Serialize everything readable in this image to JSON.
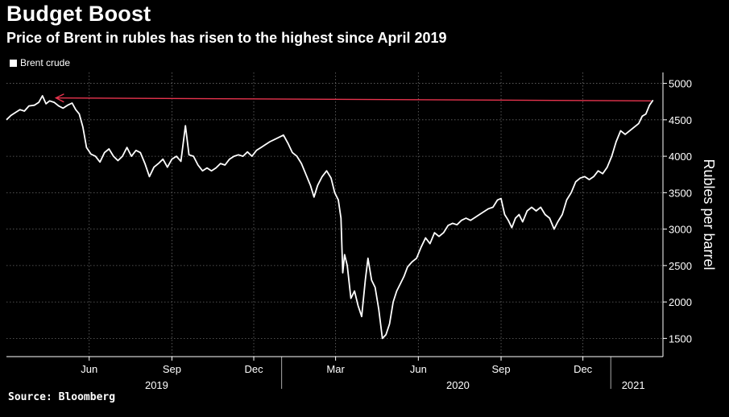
{
  "header": {
    "title": "Budget Boost",
    "subtitle": "Price of Brent in rubles has risen to the highest since April 2019"
  },
  "legend": {
    "label": "Brent crude",
    "color": "#ffffff"
  },
  "footer": {
    "source": "Source: Bloomberg"
  },
  "chart_data": {
    "type": "line",
    "title": "Budget Boost",
    "subtitle": "Price of Brent in rubles has risen to the highest since April 2019",
    "ylabel": "Rubles per barrel",
    "ylim": [
      1250,
      5150
    ],
    "yticks": [
      1500,
      2000,
      2500,
      3000,
      3500,
      4000,
      4500,
      5000
    ],
    "xlim": [
      "2019-03-01",
      "2021-02-28"
    ],
    "xticks": [
      {
        "date": "2019-06-01",
        "label": "Jun"
      },
      {
        "date": "2019-09-01",
        "label": "Sep"
      },
      {
        "date": "2019-12-01",
        "label": "Dec"
      },
      {
        "date": "2020-03-01",
        "label": "Mar"
      },
      {
        "date": "2020-06-01",
        "label": "Jun"
      },
      {
        "date": "2020-09-01",
        "label": "Sep"
      },
      {
        "date": "2020-12-01",
        "label": "Dec"
      }
    ],
    "year_labels": [
      {
        "date": "2019-08-15",
        "label": "2019"
      },
      {
        "date": "2020-07-15",
        "label": "2020"
      },
      {
        "date": "2021-01-26",
        "label": "2021"
      }
    ],
    "year_dividers": [
      "2020-01-01",
      "2021-01-01"
    ],
    "grid": true,
    "legend_position": "top-left",
    "series": [
      {
        "name": "Brent crude",
        "color": "#ffffff",
        "points": [
          [
            "2019-03-01",
            4500
          ],
          [
            "2019-03-06",
            4560
          ],
          [
            "2019-03-11",
            4600
          ],
          [
            "2019-03-16",
            4640
          ],
          [
            "2019-03-21",
            4620
          ],
          [
            "2019-03-26",
            4690
          ],
          [
            "2019-04-01",
            4700
          ],
          [
            "2019-04-06",
            4740
          ],
          [
            "2019-04-10",
            4830
          ],
          [
            "2019-04-14",
            4720
          ],
          [
            "2019-04-18",
            4760
          ],
          [
            "2019-04-23",
            4740
          ],
          [
            "2019-04-28",
            4690
          ],
          [
            "2019-05-03",
            4660
          ],
          [
            "2019-05-08",
            4700
          ],
          [
            "2019-05-13",
            4730
          ],
          [
            "2019-05-17",
            4640
          ],
          [
            "2019-05-21",
            4580
          ],
          [
            "2019-05-25",
            4400
          ],
          [
            "2019-05-29",
            4120
          ],
          [
            "2019-06-03",
            4030
          ],
          [
            "2019-06-08",
            4000
          ],
          [
            "2019-06-13",
            3920
          ],
          [
            "2019-06-18",
            4050
          ],
          [
            "2019-06-23",
            4100
          ],
          [
            "2019-06-28",
            4000
          ],
          [
            "2019-07-03",
            3940
          ],
          [
            "2019-07-08",
            4000
          ],
          [
            "2019-07-13",
            4120
          ],
          [
            "2019-07-18",
            4000
          ],
          [
            "2019-07-23",
            4080
          ],
          [
            "2019-07-28",
            4050
          ],
          [
            "2019-08-02",
            3900
          ],
          [
            "2019-08-07",
            3720
          ],
          [
            "2019-08-12",
            3850
          ],
          [
            "2019-08-17",
            3900
          ],
          [
            "2019-08-22",
            3960
          ],
          [
            "2019-08-27",
            3850
          ],
          [
            "2019-09-01",
            3960
          ],
          [
            "2019-09-06",
            4000
          ],
          [
            "2019-09-11",
            3930
          ],
          [
            "2019-09-16",
            4420
          ],
          [
            "2019-09-20",
            4020
          ],
          [
            "2019-09-25",
            4000
          ],
          [
            "2019-09-30",
            3880
          ],
          [
            "2019-10-05",
            3800
          ],
          [
            "2019-10-10",
            3840
          ],
          [
            "2019-10-15",
            3800
          ],
          [
            "2019-10-20",
            3840
          ],
          [
            "2019-10-25",
            3900
          ],
          [
            "2019-10-30",
            3880
          ],
          [
            "2019-11-04",
            3960
          ],
          [
            "2019-11-09",
            4000
          ],
          [
            "2019-11-14",
            4020
          ],
          [
            "2019-11-19",
            4000
          ],
          [
            "2019-11-24",
            4060
          ],
          [
            "2019-11-29",
            4000
          ],
          [
            "2019-12-04",
            4080
          ],
          [
            "2019-12-09",
            4120
          ],
          [
            "2019-12-14",
            4160
          ],
          [
            "2019-12-19",
            4200
          ],
          [
            "2019-12-24",
            4230
          ],
          [
            "2019-12-29",
            4260
          ],
          [
            "2020-01-03",
            4290
          ],
          [
            "2020-01-08",
            4180
          ],
          [
            "2020-01-13",
            4050
          ],
          [
            "2020-01-18",
            4000
          ],
          [
            "2020-01-23",
            3900
          ],
          [
            "2020-01-28",
            3750
          ],
          [
            "2020-02-02",
            3600
          ],
          [
            "2020-02-06",
            3440
          ],
          [
            "2020-02-10",
            3600
          ],
          [
            "2020-02-15",
            3720
          ],
          [
            "2020-02-20",
            3800
          ],
          [
            "2020-02-25",
            3700
          ],
          [
            "2020-02-29",
            3500
          ],
          [
            "2020-03-04",
            3400
          ],
          [
            "2020-03-07",
            3150
          ],
          [
            "2020-03-09",
            2400
          ],
          [
            "2020-03-11",
            2650
          ],
          [
            "2020-03-14",
            2500
          ],
          [
            "2020-03-18",
            2050
          ],
          [
            "2020-03-22",
            2150
          ],
          [
            "2020-03-26",
            1950
          ],
          [
            "2020-03-30",
            1800
          ],
          [
            "2020-04-03",
            2300
          ],
          [
            "2020-04-06",
            2600
          ],
          [
            "2020-04-10",
            2300
          ],
          [
            "2020-04-14",
            2200
          ],
          [
            "2020-04-18",
            1900
          ],
          [
            "2020-04-22",
            1500
          ],
          [
            "2020-04-26",
            1550
          ],
          [
            "2020-04-30",
            1700
          ],
          [
            "2020-05-04",
            2000
          ],
          [
            "2020-05-08",
            2150
          ],
          [
            "2020-05-12",
            2250
          ],
          [
            "2020-05-16",
            2350
          ],
          [
            "2020-05-20",
            2480
          ],
          [
            "2020-05-25",
            2550
          ],
          [
            "2020-05-30",
            2600
          ],
          [
            "2020-06-04",
            2750
          ],
          [
            "2020-06-09",
            2880
          ],
          [
            "2020-06-14",
            2800
          ],
          [
            "2020-06-19",
            2950
          ],
          [
            "2020-06-24",
            2900
          ],
          [
            "2020-06-29",
            2950
          ],
          [
            "2020-07-04",
            3050
          ],
          [
            "2020-07-09",
            3080
          ],
          [
            "2020-07-14",
            3060
          ],
          [
            "2020-07-19",
            3120
          ],
          [
            "2020-07-24",
            3150
          ],
          [
            "2020-07-29",
            3120
          ],
          [
            "2020-08-03",
            3160
          ],
          [
            "2020-08-08",
            3200
          ],
          [
            "2020-08-13",
            3240
          ],
          [
            "2020-08-18",
            3280
          ],
          [
            "2020-08-23",
            3300
          ],
          [
            "2020-08-28",
            3400
          ],
          [
            "2020-09-01",
            3420
          ],
          [
            "2020-09-05",
            3200
          ],
          [
            "2020-09-09",
            3120
          ],
          [
            "2020-09-13",
            3020
          ],
          [
            "2020-09-17",
            3150
          ],
          [
            "2020-09-21",
            3200
          ],
          [
            "2020-09-25",
            3100
          ],
          [
            "2020-09-30",
            3250
          ],
          [
            "2020-10-05",
            3300
          ],
          [
            "2020-10-10",
            3250
          ],
          [
            "2020-10-15",
            3300
          ],
          [
            "2020-10-20",
            3200
          ],
          [
            "2020-10-25",
            3150
          ],
          [
            "2020-10-30",
            3000
          ],
          [
            "2020-11-03",
            3100
          ],
          [
            "2020-11-08",
            3200
          ],
          [
            "2020-11-13",
            3400
          ],
          [
            "2020-11-18",
            3500
          ],
          [
            "2020-11-23",
            3650
          ],
          [
            "2020-11-28",
            3700
          ],
          [
            "2020-12-03",
            3720
          ],
          [
            "2020-12-08",
            3680
          ],
          [
            "2020-12-13",
            3720
          ],
          [
            "2020-12-18",
            3800
          ],
          [
            "2020-12-23",
            3760
          ],
          [
            "2020-12-28",
            3850
          ],
          [
            "2021-01-02",
            4000
          ],
          [
            "2021-01-07",
            4200
          ],
          [
            "2021-01-12",
            4350
          ],
          [
            "2021-01-17",
            4300
          ],
          [
            "2021-01-22",
            4350
          ],
          [
            "2021-01-27",
            4400
          ],
          [
            "2021-02-01",
            4450
          ],
          [
            "2021-02-05",
            4550
          ],
          [
            "2021-02-09",
            4580
          ],
          [
            "2021-02-13",
            4700
          ],
          [
            "2021-02-17",
            4770
          ]
        ]
      }
    ],
    "annotations": [
      {
        "type": "arrow",
        "color": "#e8344e",
        "from": [
          "2021-02-15",
          4760
        ],
        "to": [
          "2019-04-25",
          4800
        ]
      }
    ]
  }
}
